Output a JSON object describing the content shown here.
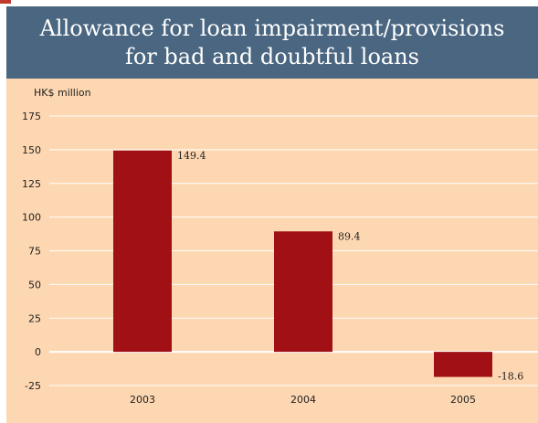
{
  "chart_data": {
    "type": "bar",
    "title": "Allowance for loan impairment/provisions for bad and doubtful loans",
    "title_lines": [
      "Allowance for loan impairment/provisions",
      "for bad and doubtful loans"
    ],
    "ylabel": "HK$ million",
    "xlabel": "",
    "categories": [
      "2003",
      "2004",
      "2005"
    ],
    "values": [
      149.4,
      89.4,
      -18.6
    ],
    "value_labels": [
      "149.4",
      "89.4",
      "-18.6"
    ],
    "yticks": [
      175,
      150,
      125,
      100,
      75,
      50,
      25,
      0,
      -25
    ],
    "ytick_labels": [
      "175",
      "150",
      "125",
      "100",
      "75",
      "50",
      "25",
      "0",
      "-25"
    ],
    "ylim": [
      -25,
      175
    ],
    "grid": true,
    "colors": {
      "bar": "#a01015",
      "background": "#fdd7b1",
      "header": "#4a6681",
      "grid": "#ffffff",
      "text": "#222222"
    }
  }
}
